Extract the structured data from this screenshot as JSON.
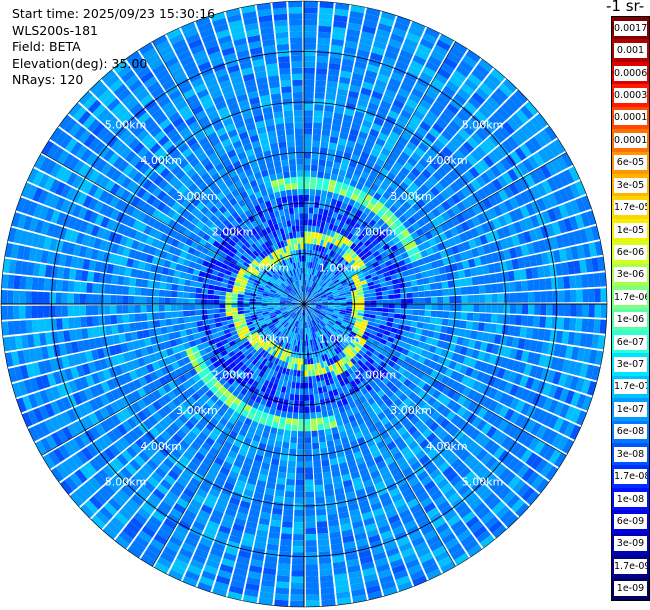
{
  "header": {
    "start_time": "Start time: 2025/09/23 15:30:16",
    "instrument": "WLS200s-181",
    "field": "Field: BETA",
    "elevation": "Elevation(deg): 35.00",
    "nrays": "NRays: 120"
  },
  "units_label": "-1 sr-",
  "range_rings": [
    {
      "range": 1.0,
      "label": "1.00km"
    },
    {
      "range": 2.0,
      "label": "2.00km"
    },
    {
      "range": 3.0,
      "label": "3.00km"
    },
    {
      "range": 4.0,
      "label": "4.00km"
    },
    {
      "range": 5.0,
      "label": "5.00km"
    }
  ],
  "max_range_km": 6.0,
  "n_rays": 120,
  "colorbar": {
    "labels": [
      "0.0017",
      "0.001",
      "0.0006",
      "0.0003",
      "0.00017",
      "0.0001",
      "6e-05",
      "3e-05",
      "1.7e-05",
      "1e-05",
      "6e-06",
      "3e-06",
      "1.7e-06",
      "1e-06",
      "6e-07",
      "3e-07",
      "1.7e-07",
      "1e-07",
      "6e-08",
      "3e-08",
      "1.7e-08",
      "1e-08",
      "6e-09",
      "3e-09",
      "1.7e-09",
      "1e-09"
    ],
    "colors": [
      "#800000",
      "#b00000",
      "#dd0000",
      "#ff1a00",
      "#ff4800",
      "#ff7000",
      "#ff9600",
      "#ffb400",
      "#ffd500",
      "#f5f000",
      "#d5ff22",
      "#aaff4d",
      "#7fff7f",
      "#55ffaa",
      "#2affd5",
      "#00e5ff",
      "#00c0ff",
      "#009cff",
      "#0078ff",
      "#0055ff",
      "#0030ff",
      "#0010ff",
      "#0000e0",
      "#0000b5",
      "#00008a",
      "#000060"
    ]
  }
}
